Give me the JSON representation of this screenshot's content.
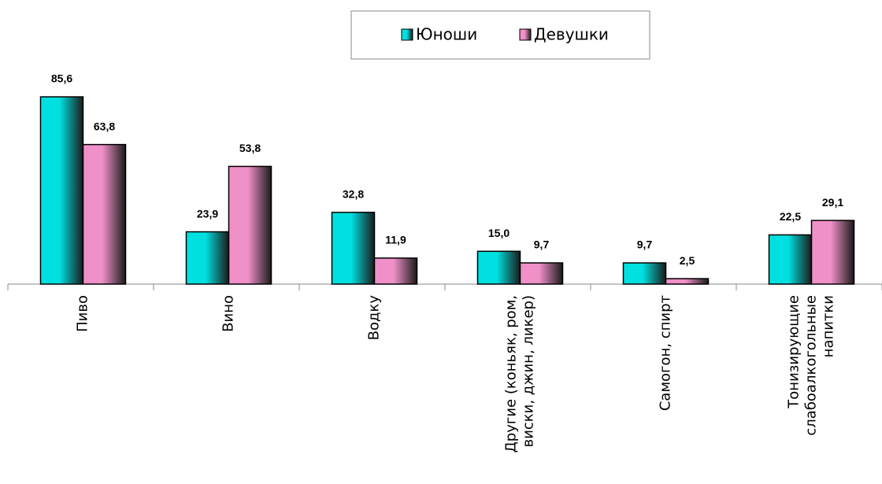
{
  "chart_data": {
    "type": "bar",
    "categories": [
      "Пиво",
      "Вино",
      "Водку",
      "Другие (коньяк, ром,\nвиски, джин, ликер)",
      "Самогон, спирт",
      "Тонизирующие\nслабоалкогольные\nнапитки"
    ],
    "series": [
      {
        "name": "Юноши",
        "color": "#00e0e0",
        "values": [
          85.6,
          23.9,
          32.8,
          15.0,
          9.7,
          22.5
        ],
        "value_labels": [
          "85,6",
          "23,9",
          "32,8",
          "15,0",
          "9,7",
          "22,5"
        ]
      },
      {
        "name": "Девушки",
        "color": "#f090c8",
        "values": [
          63.8,
          53.8,
          11.9,
          9.7,
          2.5,
          29.1
        ],
        "value_labels": [
          "63,8",
          "53,8",
          "11,9",
          "9,7",
          "2,5",
          "29,1"
        ]
      }
    ]
  }
}
